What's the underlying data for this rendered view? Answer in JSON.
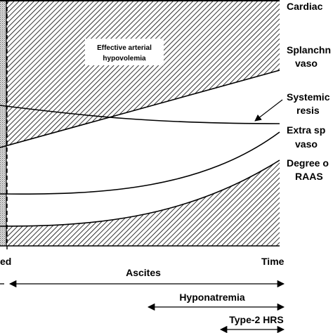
{
  "diagram": {
    "curve_labels": {
      "cardiac": "Cardiac",
      "splanchnic_1": "Splanchn",
      "splanchnic_2": "vaso",
      "systemic_1": "Systemic",
      "systemic_2": "resis",
      "extra_1": "Extra sp",
      "extra_2": "vaso",
      "raas_1": "Degree o",
      "raas_2": "RAAS"
    },
    "region_label_1": "Effective arterial",
    "region_label_2": "hypovolemia",
    "x_axis": {
      "left_label": "ed",
      "time_label": "Time"
    },
    "phases": {
      "ascites": "Ascites",
      "hyponatremia": "Hyponatremia",
      "hrs": "Type-2 HRS"
    }
  }
}
